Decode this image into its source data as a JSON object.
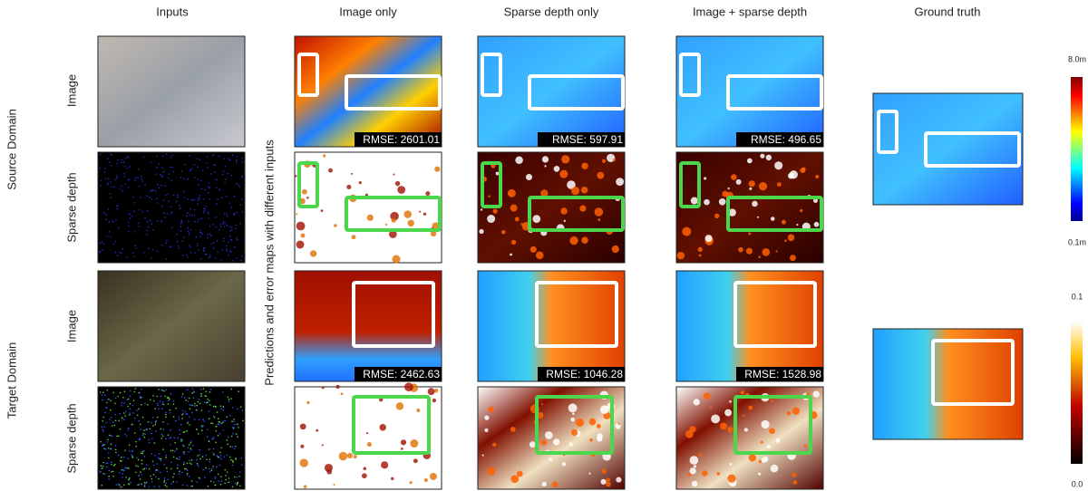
{
  "columns": [
    "Inputs",
    "Image only",
    "Sparse depth only",
    "Image + sparse depth",
    "Ground truth"
  ],
  "side_label": "Predictions and error maps with different inputs",
  "domains": [
    {
      "label": "Source Domain",
      "rows": [
        "Image",
        "Sparse depth"
      ],
      "rmse": [
        "RMSE: 2601.01",
        "RMSE: 597.91",
        "RMSE: 496.65"
      ]
    },
    {
      "label": "Target Domain",
      "rows": [
        "Image",
        "Sparse depth"
      ],
      "rmse": [
        "RMSE: 2462.63",
        "RMSE: 1046.28",
        "RMSE: 1528.98"
      ]
    }
  ],
  "colorbars": [
    {
      "top": "8.0m",
      "bottom": "0.1m"
    },
    {
      "top": "0.1",
      "bottom": "0.0"
    }
  ]
}
